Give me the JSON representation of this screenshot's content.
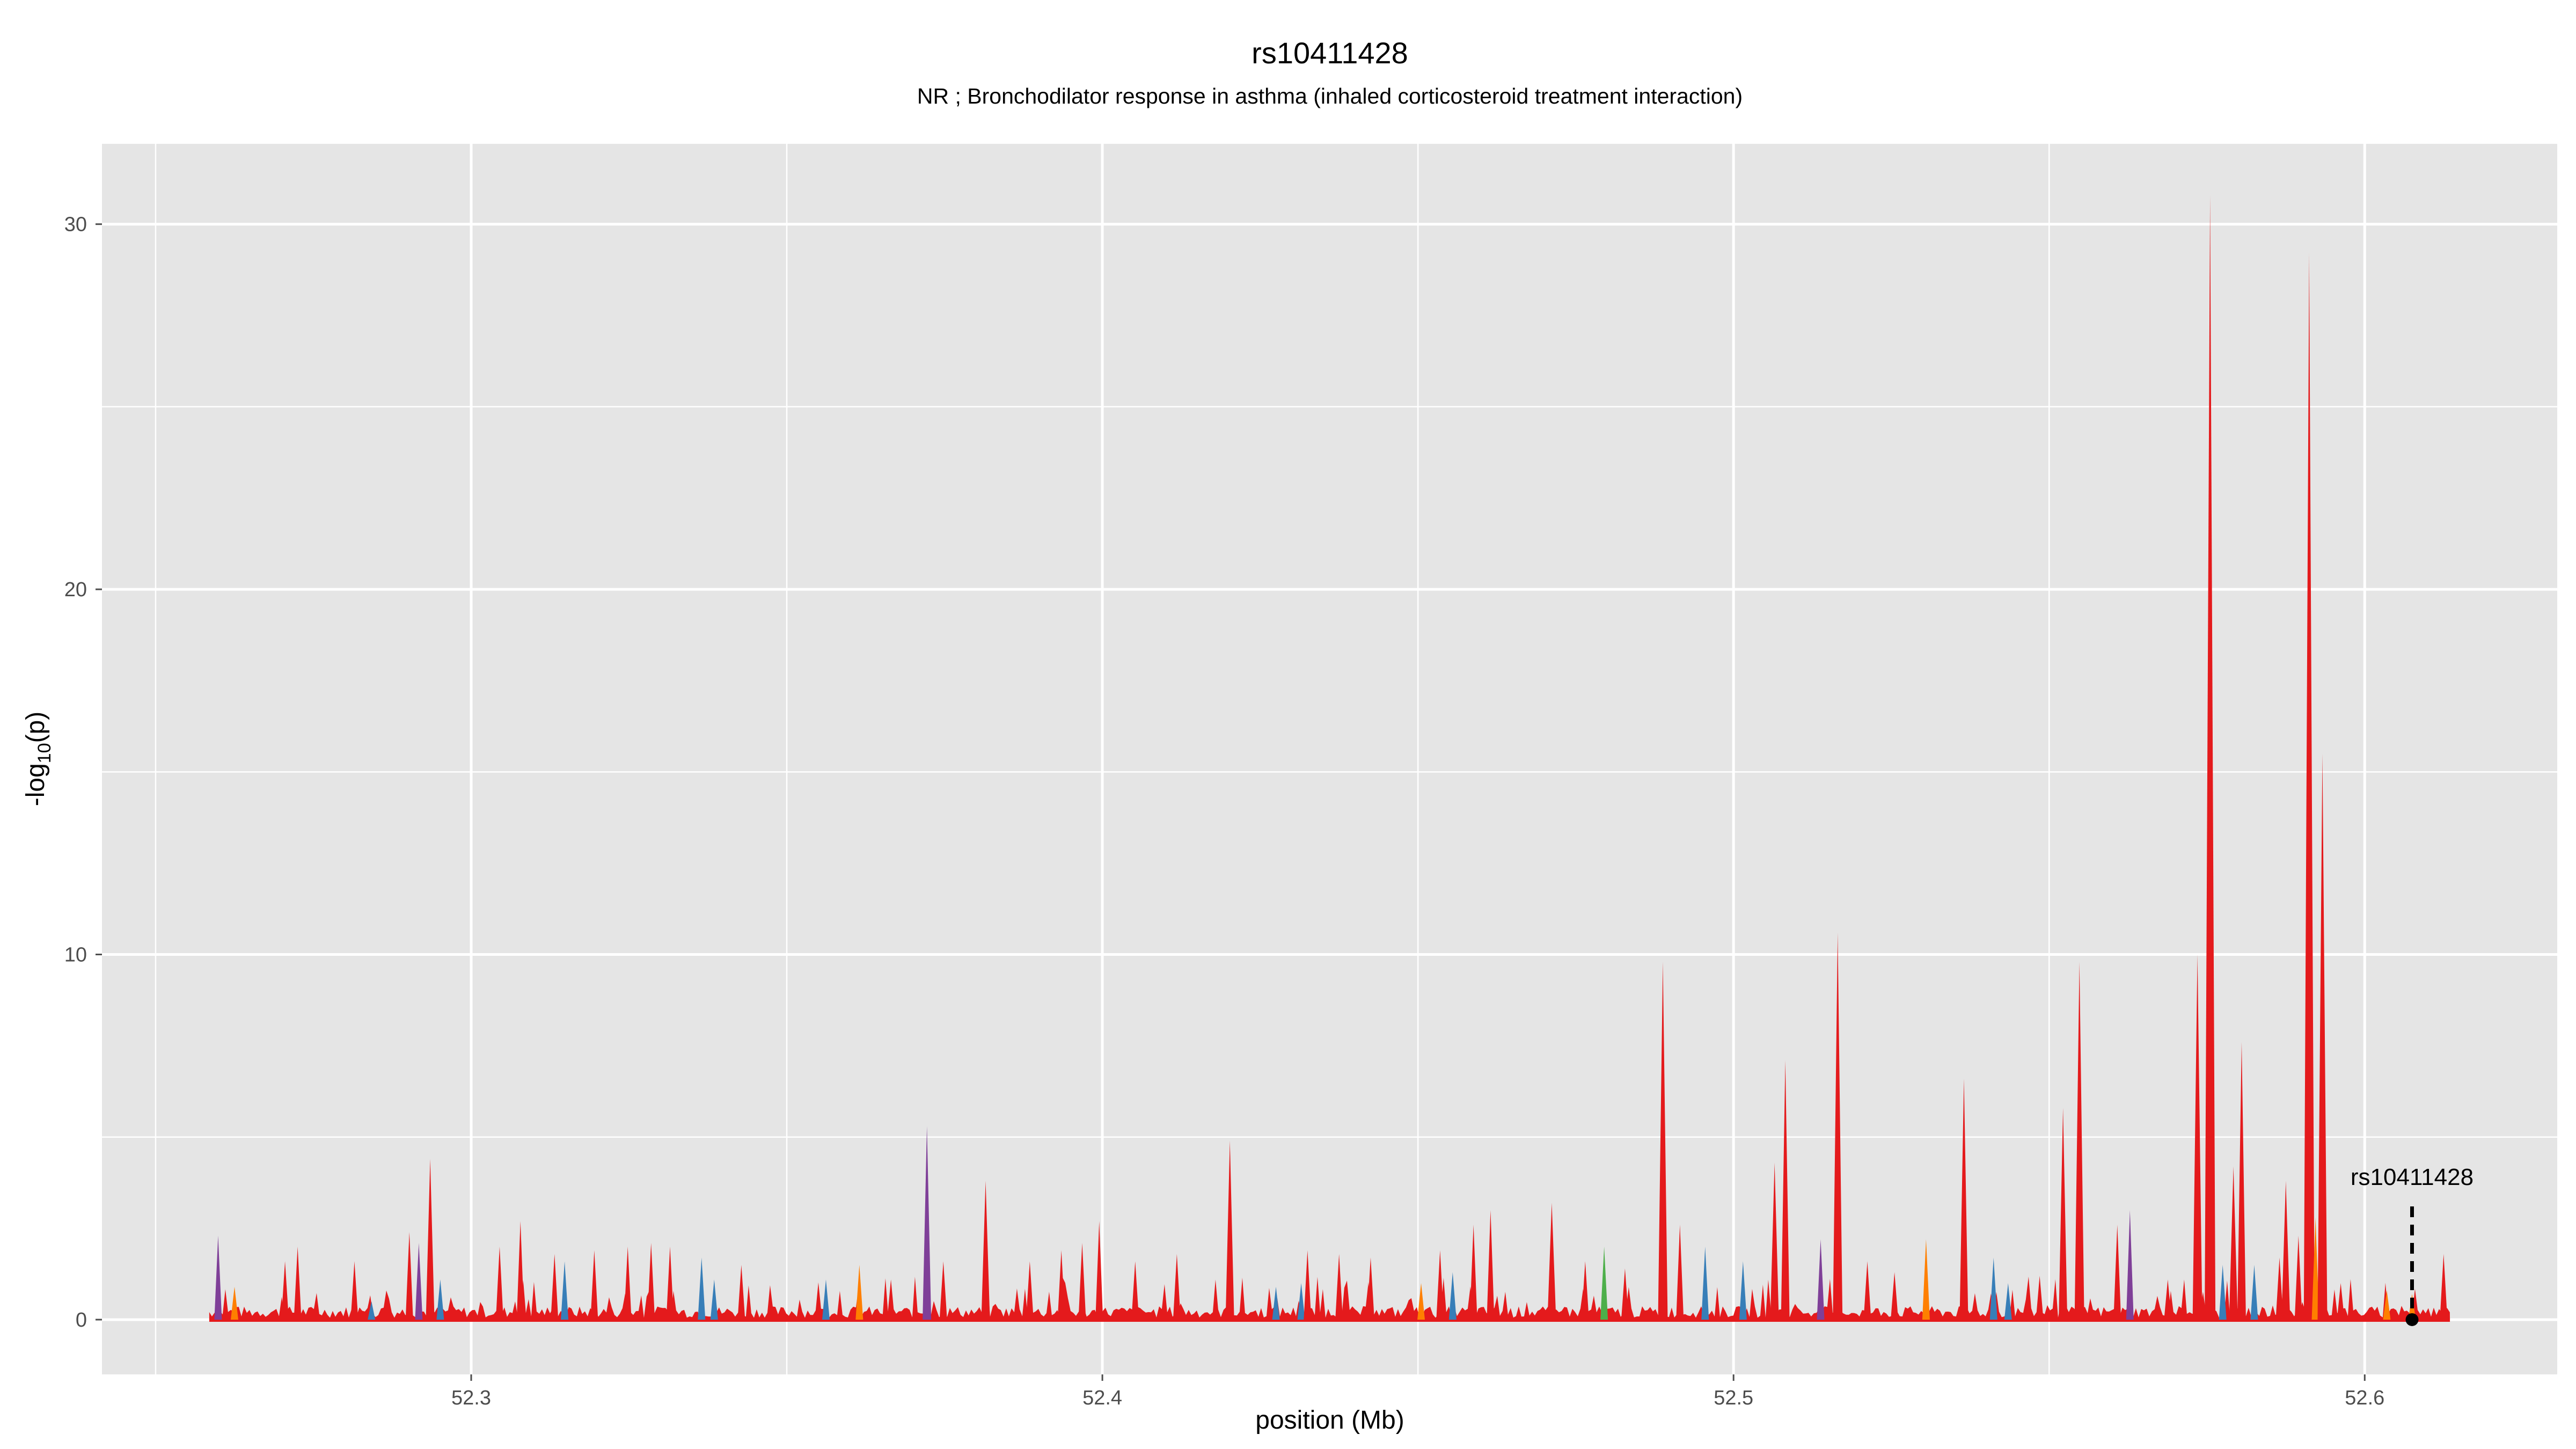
{
  "chart_data": {
    "type": "area",
    "title": "rs10411428",
    "subtitle": "NR ; Bronchodilator response in asthma (inhaled corticosteroid treatment interaction)",
    "xlabel": "position (Mb)",
    "ylabel_main": "-log",
    "ylabel_sub": "10",
    "ylabel_tail": "(p)",
    "xlim": [
      52.2415,
      52.6305
    ],
    "ylim": [
      -1.5,
      32.2
    ],
    "x_ticks": [
      {
        "value": 52.3,
        "label": "52.3"
      },
      {
        "value": 52.4,
        "label": "52.4"
      },
      {
        "value": 52.5,
        "label": "52.5"
      },
      {
        "value": 52.6,
        "label": "52.6"
      }
    ],
    "y_ticks": [
      {
        "value": 0,
        "label": "0"
      },
      {
        "value": 10,
        "label": "10"
      },
      {
        "value": 20,
        "label": "20"
      },
      {
        "value": 30,
        "label": "30"
      }
    ],
    "data_range": [
      52.2585,
      52.6135
    ],
    "grid": true,
    "panel_color": "#e5e5e5",
    "grid_color": "#ffffff",
    "colors": {
      "red": "#e41a1c",
      "blue": "#377eb8",
      "orange": "#ff7f00",
      "green": "#4daf4a",
      "purple": "#7f3f98"
    },
    "peaks": [
      {
        "x": 52.2599,
        "y": 2.3,
        "color": "purple"
      },
      {
        "x": 52.2625,
        "y": 0.9,
        "color": "orange"
      },
      {
        "x": 52.2705,
        "y": 1.6,
        "color": "red"
      },
      {
        "x": 52.2725,
        "y": 2.0,
        "color": "red"
      },
      {
        "x": 52.2815,
        "y": 1.6,
        "color": "red"
      },
      {
        "x": 52.2842,
        "y": 0.5,
        "color": "blue"
      },
      {
        "x": 52.2902,
        "y": 2.4,
        "color": "red"
      },
      {
        "x": 52.2917,
        "y": 2.1,
        "color": "purple"
      },
      {
        "x": 52.2935,
        "y": 4.4,
        "color": "red"
      },
      {
        "x": 52.2951,
        "y": 1.1,
        "color": "blue"
      },
      {
        "x": 52.3045,
        "y": 2.0,
        "color": "red"
      },
      {
        "x": 52.3078,
        "y": 2.7,
        "color": "red"
      },
      {
        "x": 52.3132,
        "y": 1.8,
        "color": "red"
      },
      {
        "x": 52.3148,
        "y": 1.6,
        "color": "blue"
      },
      {
        "x": 52.3195,
        "y": 1.9,
        "color": "red"
      },
      {
        "x": 52.3248,
        "y": 2.0,
        "color": "red"
      },
      {
        "x": 52.3285,
        "y": 2.1,
        "color": "red"
      },
      {
        "x": 52.3315,
        "y": 2.0,
        "color": "red"
      },
      {
        "x": 52.3365,
        "y": 1.7,
        "color": "blue"
      },
      {
        "x": 52.3385,
        "y": 1.1,
        "color": "blue"
      },
      {
        "x": 52.3428,
        "y": 1.5,
        "color": "red"
      },
      {
        "x": 52.3562,
        "y": 1.1,
        "color": "blue"
      },
      {
        "x": 52.3615,
        "y": 1.5,
        "color": "orange"
      },
      {
        "x": 52.3665,
        "y": 1.1,
        "color": "red"
      },
      {
        "x": 52.3722,
        "y": 5.3,
        "color": "purple"
      },
      {
        "x": 52.3748,
        "y": 1.6,
        "color": "red"
      },
      {
        "x": 52.3815,
        "y": 3.8,
        "color": "red"
      },
      {
        "x": 52.3885,
        "y": 1.6,
        "color": "red"
      },
      {
        "x": 52.3935,
        "y": 1.9,
        "color": "red"
      },
      {
        "x": 52.3968,
        "y": 2.1,
        "color": "red"
      },
      {
        "x": 52.3995,
        "y": 2.7,
        "color": "red"
      },
      {
        "x": 52.4052,
        "y": 1.6,
        "color": "red"
      },
      {
        "x": 52.4118,
        "y": 1.8,
        "color": "red"
      },
      {
        "x": 52.4202,
        "y": 4.9,
        "color": "red"
      },
      {
        "x": 52.4275,
        "y": 0.9,
        "color": "blue"
      },
      {
        "x": 52.4315,
        "y": 1.0,
        "color": "blue"
      },
      {
        "x": 52.4325,
        "y": 1.9,
        "color": "red"
      },
      {
        "x": 52.4375,
        "y": 1.8,
        "color": "red"
      },
      {
        "x": 52.4425,
        "y": 1.7,
        "color": "red"
      },
      {
        "x": 52.4505,
        "y": 1.0,
        "color": "orange"
      },
      {
        "x": 52.4535,
        "y": 1.9,
        "color": "red"
      },
      {
        "x": 52.4555,
        "y": 1.3,
        "color": "blue"
      },
      {
        "x": 52.4588,
        "y": 2.6,
        "color": "red"
      },
      {
        "x": 52.4615,
        "y": 3.0,
        "color": "red"
      },
      {
        "x": 52.4712,
        "y": 3.2,
        "color": "red"
      },
      {
        "x": 52.4765,
        "y": 1.6,
        "color": "red"
      },
      {
        "x": 52.4795,
        "y": 2.0,
        "color": "green"
      },
      {
        "x": 52.4828,
        "y": 1.4,
        "color": "red"
      },
      {
        "x": 52.4888,
        "y": 9.8,
        "color": "red"
      },
      {
        "x": 52.4915,
        "y": 2.6,
        "color": "red"
      },
      {
        "x": 52.4955,
        "y": 2.0,
        "color": "blue"
      },
      {
        "x": 52.5015,
        "y": 1.6,
        "color": "blue"
      },
      {
        "x": 52.5065,
        "y": 4.3,
        "color": "red"
      },
      {
        "x": 52.5082,
        "y": 7.1,
        "color": "red"
      },
      {
        "x": 52.5138,
        "y": 2.2,
        "color": "purple"
      },
      {
        "x": 52.5165,
        "y": 10.6,
        "color": "red"
      },
      {
        "x": 52.5212,
        "y": 1.6,
        "color": "red"
      },
      {
        "x": 52.5255,
        "y": 1.3,
        "color": "red"
      },
      {
        "x": 52.5305,
        "y": 2.2,
        "color": "orange"
      },
      {
        "x": 52.5365,
        "y": 6.6,
        "color": "red"
      },
      {
        "x": 52.5412,
        "y": 1.7,
        "color": "blue"
      },
      {
        "x": 52.5435,
        "y": 1.0,
        "color": "blue"
      },
      {
        "x": 52.5485,
        "y": 1.2,
        "color": "red"
      },
      {
        "x": 52.5522,
        "y": 5.8,
        "color": "red"
      },
      {
        "x": 52.5548,
        "y": 9.8,
        "color": "red"
      },
      {
        "x": 52.5608,
        "y": 2.6,
        "color": "red"
      },
      {
        "x": 52.5628,
        "y": 3.0,
        "color": "purple"
      },
      {
        "x": 52.5688,
        "y": 1.1,
        "color": "red"
      },
      {
        "x": 52.5735,
        "y": 10.0,
        "color": "red"
      },
      {
        "x": 52.5755,
        "y": 30.8,
        "color": "red"
      },
      {
        "x": 52.5775,
        "y": 1.5,
        "color": "blue"
      },
      {
        "x": 52.5792,
        "y": 4.2,
        "color": "red"
      },
      {
        "x": 52.5805,
        "y": 7.6,
        "color": "red"
      },
      {
        "x": 52.5825,
        "y": 1.5,
        "color": "blue"
      },
      {
        "x": 52.5865,
        "y": 1.7,
        "color": "red"
      },
      {
        "x": 52.5875,
        "y": 3.8,
        "color": "red"
      },
      {
        "x": 52.5895,
        "y": 2.3,
        "color": "red"
      },
      {
        "x": 52.5912,
        "y": 29.2,
        "color": "red"
      },
      {
        "x": 52.5922,
        "y": 2.8,
        "color": "orange"
      },
      {
        "x": 52.5933,
        "y": 15.5,
        "color": "red"
      },
      {
        "x": 52.5962,
        "y": 1.0,
        "color": "red"
      },
      {
        "x": 52.6035,
        "y": 0.8,
        "color": "orange"
      },
      {
        "x": 52.6075,
        "y": 0.7,
        "color": "orange"
      },
      {
        "x": 52.6125,
        "y": 1.8,
        "color": "red"
      }
    ],
    "annotation": {
      "label": "rs10411428",
      "x": 52.6075,
      "y": 0.0,
      "line_top_y": 3.1
    }
  }
}
